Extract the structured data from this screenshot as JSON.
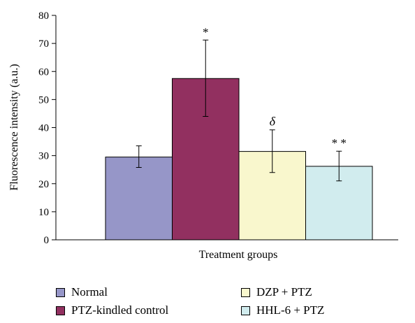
{
  "chart_data": {
    "type": "bar",
    "title": "",
    "xlabel": "Treatment groups",
    "ylabel": "Fluorescence intensity (a.u.)",
    "ylim": [
      0,
      80
    ],
    "yticks": [
      0,
      10,
      20,
      30,
      40,
      50,
      60,
      70,
      80
    ],
    "grid": false,
    "legend_position": "bottom",
    "categories": [
      "Normal",
      "PTZ-kindled control",
      "DZP + PTZ",
      "HHL-6 + PTZ"
    ],
    "values": [
      29.5,
      57.5,
      31.5,
      26.2
    ],
    "error_low": [
      25.8,
      44.0,
      24.0,
      21.0
    ],
    "error_high": [
      33.5,
      71.2,
      39.2,
      31.6
    ],
    "annotations": [
      "",
      "*",
      "δ",
      "* *"
    ],
    "colors": [
      "#9696c8",
      "#923060",
      "#f9f7cd",
      "#d1ecee"
    ]
  }
}
